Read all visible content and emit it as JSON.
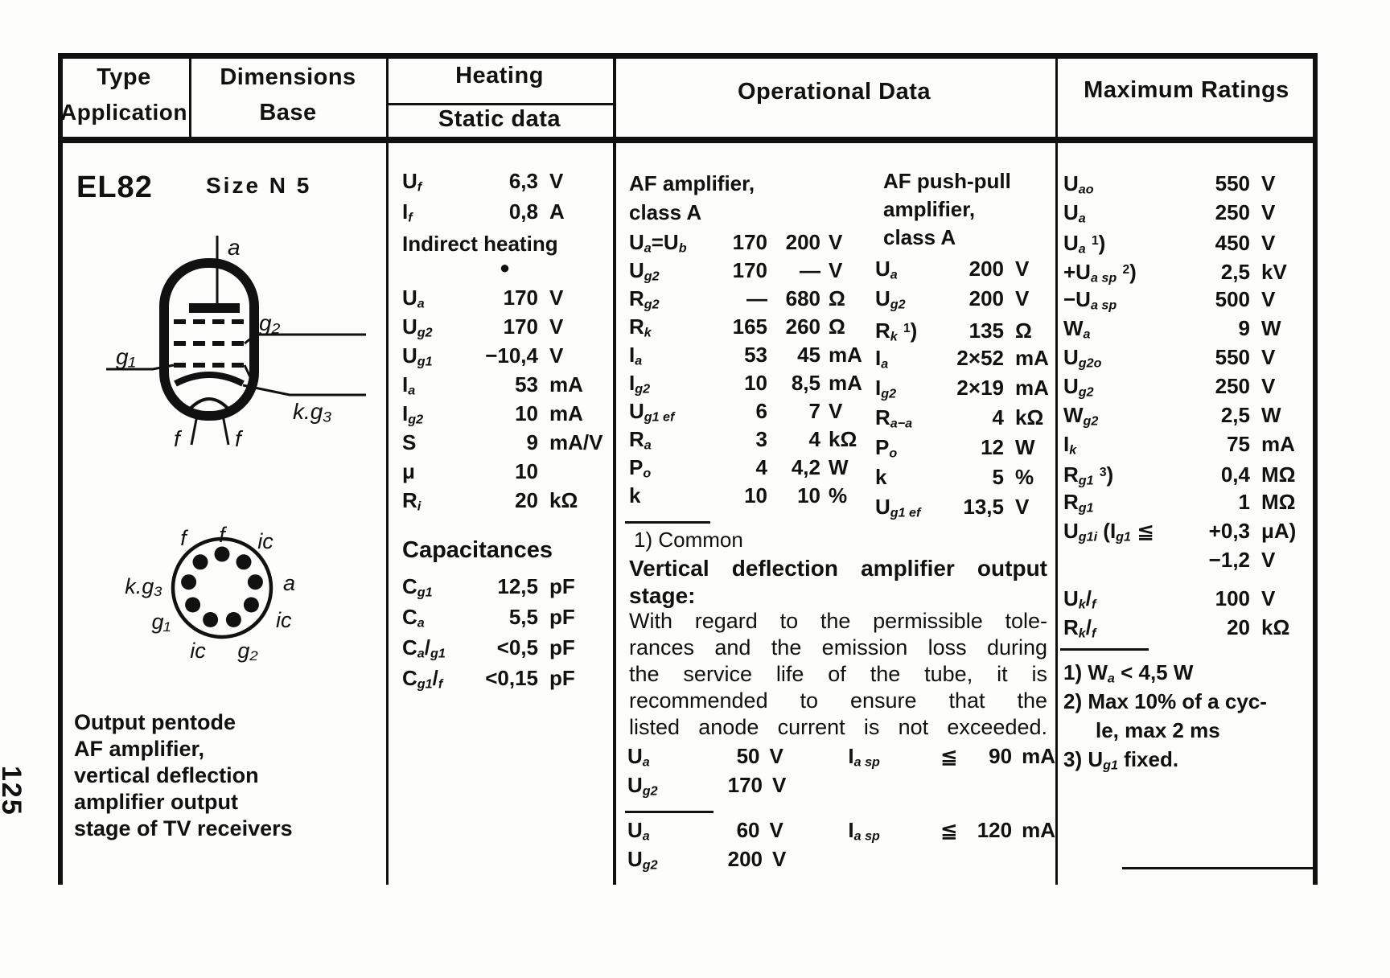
{
  "page_number": "125",
  "header": {
    "type": "Type",
    "application": "Application",
    "dimensions": "Dimensions",
    "base": "Base",
    "heating": "Heating",
    "static_data": "Static data",
    "operational": "Operational Data",
    "max_ratings": "Maximum Ratings"
  },
  "tube": {
    "name": "EL82",
    "size": "Size N 5",
    "schematic_labels": {
      "a": "a",
      "g2": "g₂",
      "g1": "g₁",
      "kg3": "k.g₃",
      "f1": "f",
      "f2": "f"
    },
    "base_labels": {
      "f_top": "f",
      "f_tl": "f",
      "ic_tr": "ic",
      "a": "a",
      "ic_r": "ic",
      "g2": "g₂",
      "ic_bl": "ic",
      "g1": "g₁",
      "kg3": "k.g₃"
    },
    "application_lines": [
      "Output pentode",
      "AF amplifier,",
      "vertical deflection",
      "amplifier output",
      "stage of TV receivers"
    ]
  },
  "heating": {
    "filament_rows": [
      {
        "label": "U_{f}",
        "val": "6,3",
        "unit": "V"
      },
      {
        "label": "I_{f}",
        "val": "0,8",
        "unit": "A"
      }
    ],
    "indirect": "Indirect heating",
    "bullet": "●",
    "static_rows": [
      {
        "label": "U_{a}",
        "val": "170",
        "unit": "V"
      },
      {
        "label": "U_{g2}",
        "val": "170",
        "unit": "V"
      },
      {
        "label": "U_{g1}",
        "val": "−10,4",
        "unit": "V"
      },
      {
        "label": "I_{a}",
        "val": "53",
        "unit": "mA"
      },
      {
        "label": "I_{g2}",
        "val": "10",
        "unit": "mA"
      },
      {
        "label": "S",
        "val": "9",
        "unit": "mA/V"
      },
      {
        "label": "μ",
        "val": "10",
        "unit": ""
      },
      {
        "label": "R_{i}",
        "val": "20",
        "unit": "kΩ"
      }
    ],
    "capacitances_title": "Capacitances",
    "capacitance_rows": [
      {
        "label": "C_{g1}",
        "val": "12,5",
        "unit": "pF"
      },
      {
        "label": "C_{a}",
        "val": "5,5",
        "unit": "pF"
      },
      {
        "label": "C_{a}/_{g1}",
        "val": "<0,5",
        "unit": "pF"
      },
      {
        "label": "C_{g1}/_{f}",
        "val": "<0,15",
        "unit": "pF"
      }
    ]
  },
  "operational": {
    "af_title_lines": [
      "AF amplifier,",
      "class A"
    ],
    "af_rows": [
      {
        "label": "U_{a}=U_{b}",
        "v1": "170",
        "v2": "200",
        "unit": "V"
      },
      {
        "label": "U_{g2}",
        "v1": "170",
        "v2": "—",
        "unit": "V"
      },
      {
        "label": "R_{g2}",
        "v1": "—",
        "v2": "680",
        "unit": "Ω"
      },
      {
        "label": "R_{k}",
        "v1": "165",
        "v2": "260",
        "unit": "Ω"
      },
      {
        "label": "I_{a}",
        "v1": "53",
        "v2": "45",
        "unit": "mA"
      },
      {
        "label": "I_{g2}",
        "v1": "10",
        "v2": "8,5",
        "unit": "mA"
      },
      {
        "label": "U_{g1 ef}",
        "v1": "6",
        "v2": "7",
        "unit": "V"
      },
      {
        "label": "R_{a}",
        "v1": "3",
        "v2": "4",
        "unit": "kΩ"
      },
      {
        "label": "P_{o}",
        "v1": "4",
        "v2": "4,2",
        "unit": "W"
      },
      {
        "label": "k",
        "v1": "10",
        "v2": "10",
        "unit": "%"
      }
    ],
    "pp_title_lines": [
      "AF push-pull",
      "amplifier,",
      "class A"
    ],
    "pp_rows": [
      {
        "label": "U_{a}",
        "val": "200",
        "unit": "V"
      },
      {
        "label": "U_{g2}",
        "val": "200",
        "unit": "V"
      },
      {
        "label": "R_{k} ^{1})",
        "val": "135",
        "unit": "Ω"
      },
      {
        "label": "I_{a}",
        "val": "2×52",
        "unit": "mA"
      },
      {
        "label": "I_{g2}",
        "val": "2×19",
        "unit": "mA"
      },
      {
        "label": "R_{a−a}",
        "val": "4",
        "unit": "kΩ"
      },
      {
        "label": "P_{o}",
        "val": "12",
        "unit": "W"
      },
      {
        "label": "k",
        "val": "5",
        "unit": "%"
      },
      {
        "label": "U_{g1 ef}",
        "val": "13,5",
        "unit": "V"
      }
    ],
    "common_note": "1) Common",
    "vdef_title_lines": [
      "Vertical deflection amplifier output",
      "stage:"
    ],
    "paragraph_lines": [
      "With regard to the permissible tole-",
      "rances and the emission loss during",
      "the service life of the tube, it is",
      "recommended to ensure that the",
      "listed anode current is not exceeded."
    ],
    "cond_rows_1": [
      {
        "label": "U_{a}",
        "val": "50",
        "unit": "V",
        "label2": "I_{a sp}",
        "rel": "≦",
        "val2": "90",
        "unit2": "mA"
      },
      {
        "label": "U_{g2}",
        "val": "170",
        "unit": "V",
        "label2": "",
        "rel": "",
        "val2": "",
        "unit2": ""
      }
    ],
    "cond_rows_2": [
      {
        "label": "U_{a}",
        "val": "60",
        "unit": "V",
        "label2": "I_{a sp}",
        "rel": "≦",
        "val2": "120",
        "unit2": "mA"
      },
      {
        "label": "U_{g2}",
        "val": "200",
        "unit": "V",
        "label2": "",
        "rel": "",
        "val2": "",
        "unit2": ""
      }
    ]
  },
  "max_ratings": {
    "rows_main": [
      {
        "label": "U_{ao}",
        "val": "550",
        "unit": "V"
      },
      {
        "label": "U_{a}",
        "val": "250",
        "unit": "V"
      },
      {
        "label": "U_{a} ^{1})",
        "val": "450",
        "unit": "V"
      },
      {
        "label": "+U_{a sp} ^{2})",
        "val": "2,5",
        "unit": "kV"
      },
      {
        "label": "−U_{a sp}",
        "val": "500",
        "unit": "V"
      },
      {
        "label": "W_{a}",
        "val": "9",
        "unit": "W"
      },
      {
        "label": "U_{g2o}",
        "val": "550",
        "unit": "V"
      },
      {
        "label": "U_{g2}",
        "val": "250",
        "unit": "V"
      },
      {
        "label": "W_{g2}",
        "val": "2,5",
        "unit": "W"
      },
      {
        "label": "I_{k}",
        "val": "75",
        "unit": "mA"
      },
      {
        "label": "R_{g1} ^{3})",
        "val": "0,4",
        "unit": "MΩ"
      },
      {
        "label": "R_{g1}",
        "val": "1",
        "unit": "MΩ"
      },
      {
        "label": "U_{g1i} (I_{g1} ≦",
        "val": "+0,3",
        "unit": "μA)"
      },
      {
        "label": "",
        "val": "−1,2",
        "unit": "V"
      }
    ],
    "rows_kf": [
      {
        "label": "U_{k}/_{f}",
        "val": "100",
        "unit": "V"
      },
      {
        "label": "R_{k}/_{f}",
        "val": "20",
        "unit": "kΩ"
      }
    ],
    "footnotes": {
      "fn1": "1) W_{a} < 4,5 W",
      "fn2": "2) Max 10% of a cyc-",
      "fn3": "le, max 2 ms",
      "fn4": "3) U_{g1} fixed."
    }
  }
}
